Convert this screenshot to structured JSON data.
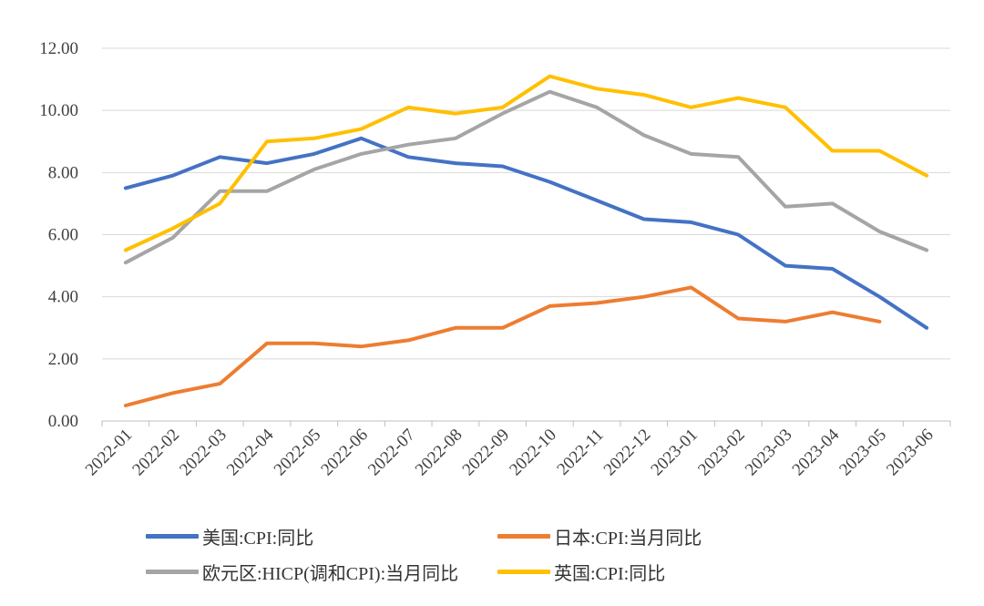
{
  "chart_data": {
    "type": "line",
    "title": "",
    "xlabel": "",
    "ylabel": "",
    "ylim": [
      0,
      12
    ],
    "yticks": [
      "0.00",
      "2.00",
      "4.00",
      "6.00",
      "8.00",
      "10.00",
      "12.00"
    ],
    "grid": true,
    "legend_position": "bottom",
    "categories": [
      "2022-01",
      "2022-02",
      "2022-03",
      "2022-04",
      "2022-05",
      "2022-06",
      "2022-07",
      "2022-08",
      "2022-09",
      "2022-10",
      "2022-11",
      "2022-12",
      "2023-01",
      "2023-02",
      "2023-03",
      "2023-04",
      "2023-05",
      "2023-06"
    ],
    "series": [
      {
        "name": "美国:CPI:同比",
        "color": "#4472C4",
        "values": [
          7.5,
          7.9,
          8.5,
          8.3,
          8.6,
          9.1,
          8.5,
          8.3,
          8.2,
          7.7,
          7.1,
          6.5,
          6.4,
          6.0,
          5.0,
          4.9,
          4.0,
          3.0
        ]
      },
      {
        "name": "日本:CPI:当月同比",
        "color": "#ED7D31",
        "values": [
          0.5,
          0.9,
          1.2,
          2.5,
          2.5,
          2.4,
          2.6,
          3.0,
          3.0,
          3.7,
          3.8,
          4.0,
          4.3,
          3.3,
          3.2,
          3.5,
          3.2,
          null
        ]
      },
      {
        "name": "欧元区:HICP(调和CPI):当月同比",
        "color": "#A5A5A5",
        "values": [
          5.1,
          5.9,
          7.4,
          7.4,
          8.1,
          8.6,
          8.9,
          9.1,
          9.9,
          10.6,
          10.1,
          9.2,
          8.6,
          8.5,
          6.9,
          7.0,
          6.1,
          5.5
        ]
      },
      {
        "name": "英国:CPI:同比",
        "color": "#FFC000",
        "values": [
          5.5,
          6.2,
          7.0,
          9.0,
          9.1,
          9.4,
          10.1,
          9.9,
          10.1,
          11.1,
          10.7,
          10.5,
          10.1,
          10.4,
          10.1,
          8.7,
          8.7,
          7.9
        ]
      }
    ]
  }
}
